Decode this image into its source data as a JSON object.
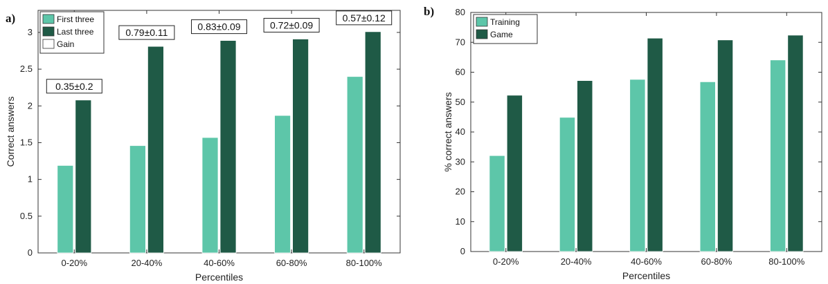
{
  "colors": {
    "light": "#5dc6a9",
    "dark": "#1f5a46",
    "gain": "#ffffff",
    "axis": "#333333"
  },
  "chart_data": [
    {
      "type": "bar",
      "panel_label": "a)",
      "xlabel": "Percentiles",
      "ylabel": "Correct answers",
      "ylim": [
        0,
        3.3
      ],
      "yticks": [
        "0",
        "0.5",
        "1",
        "1.5",
        "2",
        "2.5",
        "3"
      ],
      "categories": [
        "0-20%",
        "20-40%",
        "40-60%",
        "60-80%",
        "80-100%"
      ],
      "series": [
        {
          "name": "First three",
          "values": [
            1.19,
            1.46,
            1.57,
            1.87,
            2.4
          ]
        },
        {
          "name": "Last three",
          "values": [
            2.08,
            2.81,
            2.89,
            2.91,
            3.01
          ]
        }
      ],
      "legend": [
        "First three",
        "Last three",
        "Gain"
      ],
      "legend_position": "top-left",
      "annotations": [
        "0.35±0.2",
        "0.79±0.11",
        "0.83±0.09",
        "0.72±0.09",
        "0.57±0.12"
      ]
    },
    {
      "type": "bar",
      "panel_label": "b)",
      "xlabel": "Percentiles",
      "ylabel": "% correct answers",
      "ylim": [
        0,
        80
      ],
      "yticks": [
        "0",
        "10",
        "20",
        "30",
        "40",
        "50",
        "60",
        "70",
        "80"
      ],
      "categories": [
        "0-20%",
        "20-40%",
        "40-60%",
        "60-80%",
        "80-100%"
      ],
      "series": [
        {
          "name": "Training",
          "values": [
            32.1,
            44.9,
            57.6,
            56.8,
            64.1
          ]
        },
        {
          "name": "Game",
          "values": [
            52.3,
            57.2,
            71.4,
            70.8,
            72.4
          ]
        }
      ],
      "legend": [
        "Training",
        "Game"
      ],
      "legend_position": "top-left"
    }
  ]
}
